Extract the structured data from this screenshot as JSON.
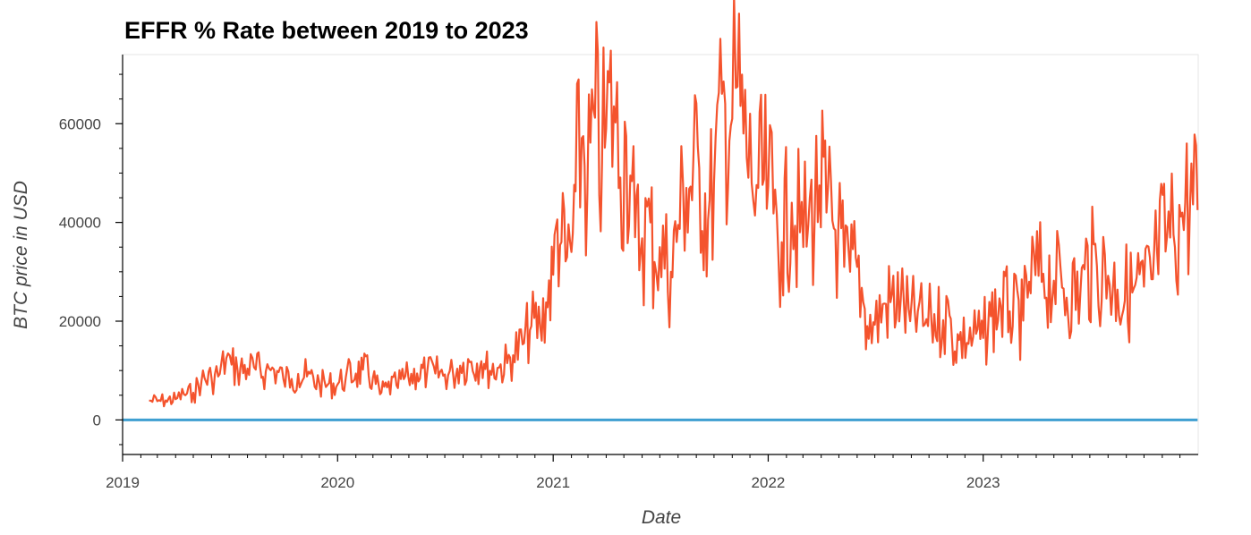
{
  "chart_data": {
    "type": "line",
    "title": "EFFR % Rate between 2019 to 2023",
    "xlabel": "Date",
    "ylabel": "BTC price in USD",
    "xlim": [
      "2019-01-01",
      "2023-12-31"
    ],
    "ylim": [
      -7000,
      74000
    ],
    "x_ticks": [
      "2019",
      "2020",
      "2021",
      "2022",
      "2023"
    ],
    "y_ticks": [
      0,
      20000,
      40000,
      60000
    ],
    "grid": false,
    "legend": "none",
    "series": [
      {
        "color": "#f4532d",
        "x": [
          "2019-02-15",
          "2019-03-01",
          "2019-03-15",
          "2019-04-01",
          "2019-04-15",
          "2019-05-01",
          "2019-05-15",
          "2019-06-01",
          "2019-06-15",
          "2019-06-26",
          "2019-07-05",
          "2019-07-15",
          "2019-08-01",
          "2019-08-15",
          "2019-09-01",
          "2019-09-15",
          "2019-10-01",
          "2019-10-15",
          "2019-10-26",
          "2019-11-10",
          "2019-12-01",
          "2019-12-15",
          "2020-01-01",
          "2020-01-15",
          "2020-02-01",
          "2020-02-13",
          "2020-03-01",
          "2020-03-13",
          "2020-03-25",
          "2020-04-10",
          "2020-04-30",
          "2020-05-15",
          "2020-06-01",
          "2020-06-15",
          "2020-07-01",
          "2020-07-15",
          "2020-07-27",
          "2020-08-15",
          "2020-09-01",
          "2020-09-08",
          "2020-10-01",
          "2020-10-15",
          "2020-10-25",
          "2020-11-10",
          "2020-11-25",
          "2020-12-10",
          "2020-12-20",
          "2021-01-01",
          "2021-01-08",
          "2021-01-15",
          "2021-01-22",
          "2021-02-01",
          "2021-02-08",
          "2021-02-21",
          "2021-02-28",
          "2021-03-13",
          "2021-03-25",
          "2021-04-01",
          "2021-04-14",
          "2021-04-25",
          "2021-05-05",
          "2021-05-12",
          "2021-05-20",
          "2021-06-01",
          "2021-06-15",
          "2021-06-22",
          "2021-07-01",
          "2021-07-20",
          "2021-08-01",
          "2021-08-15",
          "2021-09-06",
          "2021-09-21",
          "2021-10-01",
          "2021-10-20",
          "2021-11-01",
          "2021-11-10",
          "2021-11-20",
          "2021-12-04",
          "2021-12-15",
          "2022-01-01",
          "2022-01-10",
          "2022-01-24",
          "2022-02-10",
          "2022-02-24",
          "2022-03-10",
          "2022-03-29",
          "2022-04-10",
          "2022-04-30",
          "2022-05-10",
          "2022-05-20",
          "2022-06-01",
          "2022-06-14",
          "2022-06-18",
          "2022-07-01",
          "2022-07-20",
          "2022-08-14",
          "2022-08-30",
          "2022-09-12",
          "2022-09-21",
          "2022-10-05",
          "2022-10-25",
          "2022-11-05",
          "2022-11-09",
          "2022-11-21",
          "2022-12-15",
          "2023-01-01",
          "2023-01-14",
          "2023-01-31",
          "2023-02-15",
          "2023-03-10",
          "2023-03-20",
          "2023-04-13",
          "2023-05-01",
          "2023-05-15",
          "2023-06-15",
          "2023-06-22",
          "2023-07-13",
          "2023-08-01",
          "2023-08-17",
          "2023-09-11",
          "2023-10-01",
          "2023-10-16",
          "2023-10-23",
          "2023-11-09",
          "2023-11-20",
          "2023-12-05",
          "2023-12-10",
          "2023-12-31"
        ],
        "values": [
          3900,
          3800,
          3950,
          4200,
          5200,
          5500,
          7900,
          8500,
          9300,
          12500,
          11200,
          10200,
          10400,
          10200,
          9800,
          10200,
          8300,
          8300,
          9300,
          8800,
          7400,
          7100,
          7200,
          8700,
          9400,
          10200,
          8600,
          5200,
          6600,
          7000,
          8800,
          9400,
          9500,
          9400,
          9200,
          9400,
          11000,
          11800,
          11900,
          10300,
          10600,
          11500,
          13100,
          15300,
          19000,
          18900,
          23800,
          29400,
          40600,
          36000,
          32100,
          34000,
          46300,
          57500,
          46000,
          61200,
          52300,
          59000,
          63500,
          49100,
          57500,
          49500,
          37000,
          36800,
          40000,
          32000,
          35000,
          30000,
          39500,
          47000,
          51000,
          40600,
          48000,
          64000,
          61000,
          67500,
          58000,
          48000,
          47000,
          47300,
          41800,
          36000,
          44000,
          38000,
          39400,
          47500,
          42000,
          38500,
          31000,
          30000,
          31000,
          22500,
          19000,
          19300,
          23500,
          24400,
          20000,
          22000,
          19000,
          20300,
          20200,
          21100,
          16500,
          16200,
          16800,
          16600,
          21000,
          23100,
          22000,
          20100,
          28000,
          29600,
          28200,
          26800,
          25600,
          30500,
          31200,
          29200,
          26400,
          25800,
          27000,
          28500,
          34500,
          37000,
          37500,
          42000,
          44000,
          42500
        ]
      },
      {
        "color": "#3f9fd1",
        "x": [
          "2019-01-01",
          "2023-12-31"
        ],
        "values": [
          0,
          0
        ]
      }
    ]
  }
}
